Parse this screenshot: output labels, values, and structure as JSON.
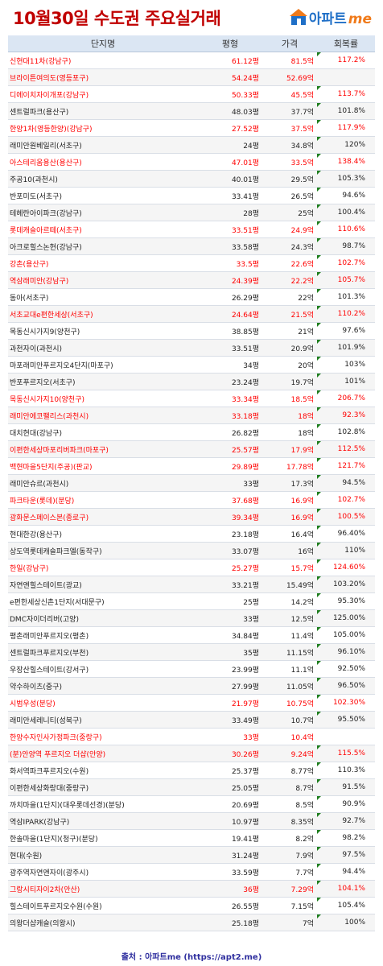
{
  "title": "10월30일 수도권 주요실거래",
  "logo": {
    "text": "아파트",
    "accent": "me",
    "brand_color": "#1f6fc7",
    "accent_color": "#f07a1a",
    "icon": "house-icon"
  },
  "columns": [
    "단지명",
    "평형",
    "가격",
    "회복률"
  ],
  "rows": [
    {
      "name": "신현대11차(강남구)",
      "area": "61.12평",
      "price": "81.5억",
      "recovery": "117.2%",
      "hl": true,
      "mark": true
    },
    {
      "name": "브라이튼여의도(영등포구)",
      "area": "54.24평",
      "price": "52.69억",
      "recovery": "",
      "hl": true,
      "mark": false
    },
    {
      "name": "디에이치자이개포(강남구)",
      "area": "50.33평",
      "price": "45.5억",
      "recovery": "113.7%",
      "hl": true,
      "mark": true
    },
    {
      "name": "센트럴파크(용산구)",
      "area": "48.03평",
      "price": "37.7억",
      "recovery": "101.8%",
      "hl": false,
      "mark": true
    },
    {
      "name": "한양1차(영등한양)(강남구)",
      "area": "27.52평",
      "price": "37.5억",
      "recovery": "117.9%",
      "hl": true,
      "mark": true
    },
    {
      "name": "래미안원베일리(서초구)",
      "area": "24평",
      "price": "34.8억",
      "recovery": "120%",
      "hl": false,
      "mark": true
    },
    {
      "name": "아스테리움용산(용산구)",
      "area": "47.01평",
      "price": "33.5억",
      "recovery": "138.4%",
      "hl": true,
      "mark": true
    },
    {
      "name": "주공10(과천시)",
      "area": "40.01평",
      "price": "29.5억",
      "recovery": "105.3%",
      "hl": false,
      "mark": true
    },
    {
      "name": "반포미도(서초구)",
      "area": "33.41평",
      "price": "26.5억",
      "recovery": "94.6%",
      "hl": false,
      "mark": true
    },
    {
      "name": "테헤란아이파크(강남구)",
      "area": "28평",
      "price": "25억",
      "recovery": "100.4%",
      "hl": false,
      "mark": true
    },
    {
      "name": "롯데캐슬아르떼(서초구)",
      "area": "33.51평",
      "price": "24.9억",
      "recovery": "110.6%",
      "hl": true,
      "mark": true
    },
    {
      "name": "아크로힐스논현(강남구)",
      "area": "33.58평",
      "price": "24.3억",
      "recovery": "98.7%",
      "hl": false,
      "mark": true
    },
    {
      "name": "강촌(용산구)",
      "area": "33.5평",
      "price": "22.6억",
      "recovery": "102.7%",
      "hl": true,
      "mark": true
    },
    {
      "name": "역삼래미안(강남구)",
      "area": "24.39평",
      "price": "22.2억",
      "recovery": "105.7%",
      "hl": true,
      "mark": true
    },
    {
      "name": "동아(서초구)",
      "area": "26.29평",
      "price": "22억",
      "recovery": "101.3%",
      "hl": false,
      "mark": true
    },
    {
      "name": "서초교대e편한세상(서초구)",
      "area": "24.64평",
      "price": "21.5억",
      "recovery": "110.2%",
      "hl": true,
      "mark": true
    },
    {
      "name": "목동신시가지9(양천구)",
      "area": "38.85평",
      "price": "21억",
      "recovery": "97.6%",
      "hl": false,
      "mark": true
    },
    {
      "name": "과천자이(과천시)",
      "area": "33.51평",
      "price": "20.9억",
      "recovery": "101.9%",
      "hl": false,
      "mark": true
    },
    {
      "name": "마포래미안푸르지오4단지(마포구)",
      "area": "34평",
      "price": "20억",
      "recovery": "103%",
      "hl": false,
      "mark": true
    },
    {
      "name": "반포푸르지오(서초구)",
      "area": "23.24평",
      "price": "19.7억",
      "recovery": "101%",
      "hl": false,
      "mark": true
    },
    {
      "name": "목동신시가지10(양천구)",
      "area": "33.34평",
      "price": "18.5억",
      "recovery": "206.7%",
      "hl": true,
      "mark": true
    },
    {
      "name": "래미안에코팰리스(과천시)",
      "area": "33.18평",
      "price": "18억",
      "recovery": "92.3%",
      "hl": true,
      "mark": true
    },
    {
      "name": "대치현대(강남구)",
      "area": "26.82평",
      "price": "18억",
      "recovery": "102.8%",
      "hl": false,
      "mark": true
    },
    {
      "name": "이편한세상마포리버파크(마포구)",
      "area": "25.57평",
      "price": "17.9억",
      "recovery": "112.5%",
      "hl": true,
      "mark": true
    },
    {
      "name": "백현마을5단지(주공)(판교)",
      "area": "29.89평",
      "price": "17.78억",
      "recovery": "121.7%",
      "hl": true,
      "mark": true
    },
    {
      "name": "래미안슈르(과천시)",
      "area": "33평",
      "price": "17.3억",
      "recovery": "94.5%",
      "hl": false,
      "mark": true
    },
    {
      "name": "파크타운(롯데)(분당)",
      "area": "37.68평",
      "price": "16.9억",
      "recovery": "102.7%",
      "hl": true,
      "mark": true
    },
    {
      "name": "광화문스페이스본(종로구)",
      "area": "39.34평",
      "price": "16.9억",
      "recovery": "100.5%",
      "hl": true,
      "mark": true
    },
    {
      "name": "현대한강(용산구)",
      "area": "23.18평",
      "price": "16.4억",
      "recovery": "96.40%",
      "hl": false,
      "mark": true
    },
    {
      "name": "상도역롯데캐슬파크엘(동작구)",
      "area": "33.07평",
      "price": "16억",
      "recovery": "110%",
      "hl": false,
      "mark": true
    },
    {
      "name": "한일(강남구)",
      "area": "25.27평",
      "price": "15.7억",
      "recovery": "124.60%",
      "hl": true,
      "mark": true
    },
    {
      "name": "자연앤힐스테이트(광교)",
      "area": "33.21평",
      "price": "15.49억",
      "recovery": "103.20%",
      "hl": false,
      "mark": true
    },
    {
      "name": "e편한세상신촌1단지(서대문구)",
      "area": "25평",
      "price": "14.2억",
      "recovery": "95.30%",
      "hl": false,
      "mark": true
    },
    {
      "name": "DMC자이더리버(고양)",
      "area": "33평",
      "price": "12.5억",
      "recovery": "125.00%",
      "hl": false,
      "mark": true
    },
    {
      "name": "평촌래미안푸르지오(평촌)",
      "area": "34.84평",
      "price": "11.4억",
      "recovery": "105.00%",
      "hl": false,
      "mark": true
    },
    {
      "name": "센트럴파크푸르지오(부천)",
      "area": "35평",
      "price": "11.15억",
      "recovery": "96.10%",
      "hl": false,
      "mark": true
    },
    {
      "name": "우장산힐스테이트(강서구)",
      "area": "23.99평",
      "price": "11.1억",
      "recovery": "92.50%",
      "hl": false,
      "mark": true
    },
    {
      "name": "약수하이츠(중구)",
      "area": "27.99평",
      "price": "11.05억",
      "recovery": "96.50%",
      "hl": false,
      "mark": true
    },
    {
      "name": "시범우성(분당)",
      "area": "21.97평",
      "price": "10.75억",
      "recovery": "102.30%",
      "hl": true,
      "mark": true
    },
    {
      "name": "래미안세레니티(성북구)",
      "area": "33.49평",
      "price": "10.7억",
      "recovery": "95.50%",
      "hl": false,
      "mark": true
    },
    {
      "name": "한양수자인사가정파크(중랑구)",
      "area": "33평",
      "price": "10.4억",
      "recovery": "",
      "hl": true,
      "mark": false
    },
    {
      "name": "(분)안양역 푸르지오 더샵(안양)",
      "area": "30.26평",
      "price": "9.24억",
      "recovery": "115.5%",
      "hl": true,
      "mark": true
    },
    {
      "name": "화서역파크푸르지오(수원)",
      "area": "25.37평",
      "price": "8.77억",
      "recovery": "110.3%",
      "hl": false,
      "mark": true
    },
    {
      "name": "이편한세상화랑대(중랑구)",
      "area": "25.05평",
      "price": "8.7억",
      "recovery": "91.5%",
      "hl": false,
      "mark": true
    },
    {
      "name": "까치마을(1단지)(대우롯데선경)(분당)",
      "area": "20.69평",
      "price": "8.5억",
      "recovery": "90.9%",
      "hl": false,
      "mark": true
    },
    {
      "name": "역삼IPARK(강남구)",
      "area": "10.97평",
      "price": "8.35억",
      "recovery": "92.7%",
      "hl": false,
      "mark": true
    },
    {
      "name": "한솔마을(1단지)(청구)(분당)",
      "area": "19.41평",
      "price": "8.2억",
      "recovery": "98.2%",
      "hl": false,
      "mark": true
    },
    {
      "name": "현대(수원)",
      "area": "31.24평",
      "price": "7.9억",
      "recovery": "97.5%",
      "hl": false,
      "mark": true
    },
    {
      "name": "광주역자연앤자이(광주시)",
      "area": "33.59평",
      "price": "7.7억",
      "recovery": "94.4%",
      "hl": false,
      "mark": true
    },
    {
      "name": "그랑시티자이2차(안산)",
      "area": "36평",
      "price": "7.29억",
      "recovery": "104.1%",
      "hl": true,
      "mark": true
    },
    {
      "name": "힐스테이트푸르지오수원(수원)",
      "area": "26.55평",
      "price": "7.15억",
      "recovery": "105.4%",
      "hl": false,
      "mark": true
    },
    {
      "name": "의왕더샵캐슬(의왕시)",
      "area": "25.18평",
      "price": "7억",
      "recovery": "100%",
      "hl": false,
      "mark": true
    }
  ],
  "footer": "출처 : 아파트me (https://apt2.me)",
  "colors": {
    "highlight": "#ff0000",
    "header_bg": "#dbe6f3",
    "title": "#c00000"
  }
}
